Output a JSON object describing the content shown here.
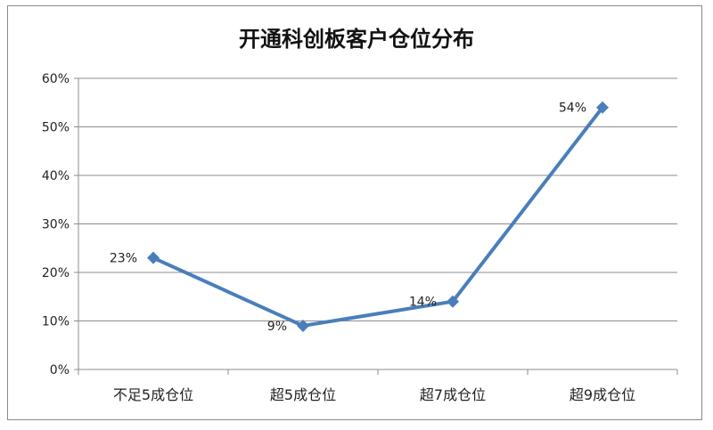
{
  "chart_data": {
    "type": "line",
    "title": "开通科创板客户仓位分布",
    "categories": [
      "不足5成仓位",
      "超5成仓位",
      "超7成仓位",
      "超9成仓位"
    ],
    "values": [
      23,
      9,
      14,
      54
    ],
    "data_labels": [
      "23%",
      "9%",
      "14%",
      "54%"
    ],
    "ylim": [
      0,
      60
    ],
    "yticks": [
      0,
      10,
      20,
      30,
      40,
      50,
      60
    ],
    "ytick_labels": [
      "0%",
      "10%",
      "20%",
      "30%",
      "40%",
      "50%",
      "60%"
    ],
    "xlabel": "",
    "ylabel": "",
    "grid": true,
    "legend": "none",
    "line_color": "#4a7ebb",
    "grid_color": "#8c8c8c"
  }
}
